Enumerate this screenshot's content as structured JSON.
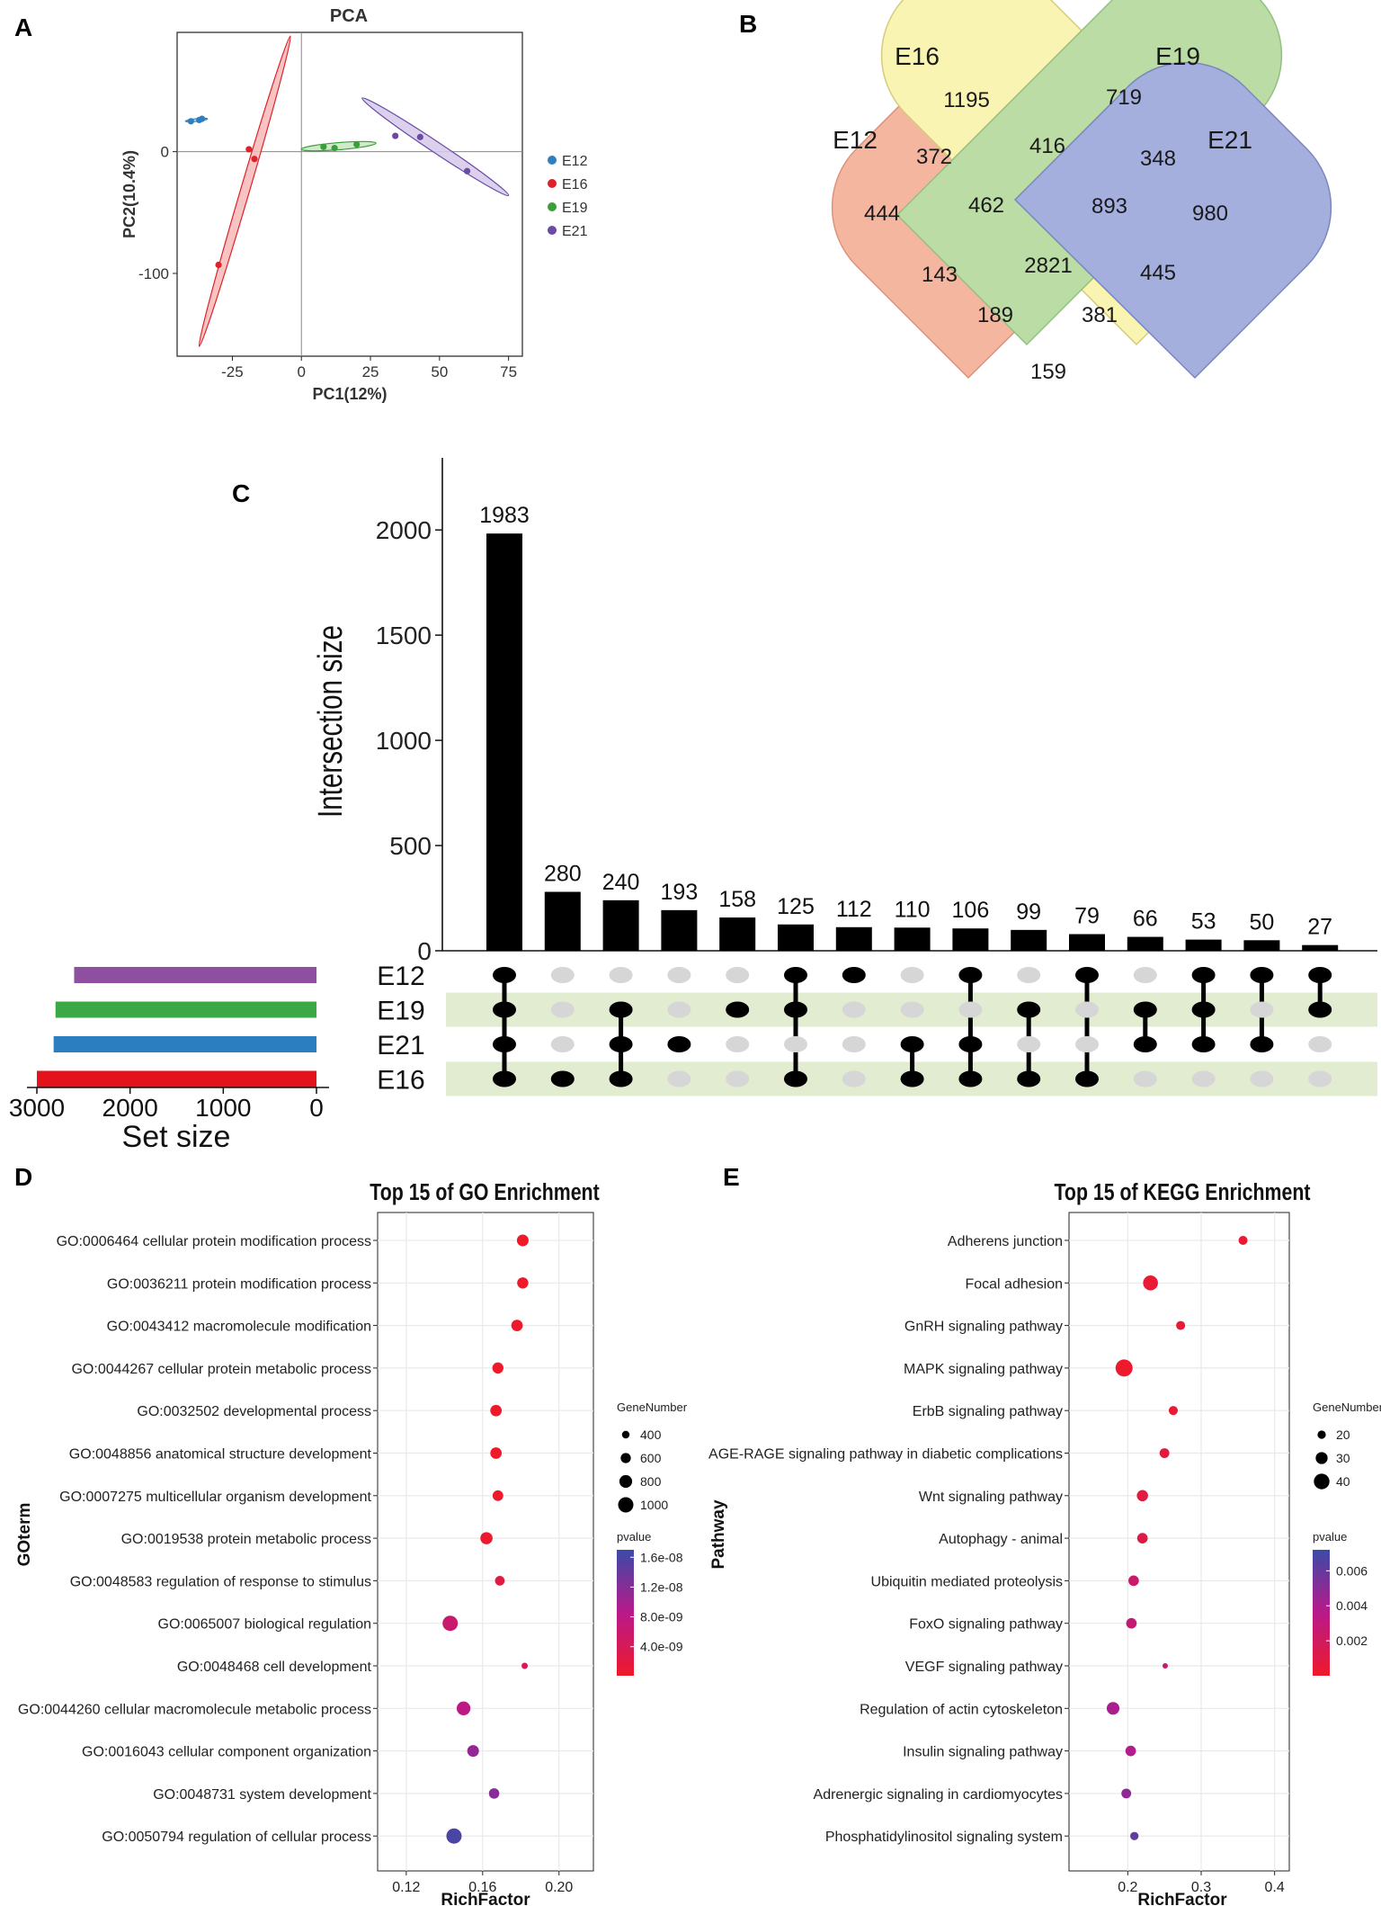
{
  "panel_labels": {
    "A": "A",
    "B": "B",
    "C": "C",
    "D": "D",
    "E": "E"
  },
  "chart_data": [
    {
      "panel": "A",
      "type": "scatter",
      "title": "PCA",
      "xlabel": "PC1(12%)",
      "ylabel": "PC2(10.4%)",
      "xlim": [
        -45,
        80
      ],
      "ylim": [
        -168,
        98
      ],
      "xticks": [
        -25,
        0,
        25,
        50,
        75
      ],
      "yticks": [
        0,
        -100
      ],
      "series": [
        {
          "name": "E12",
          "color": "#2f7ec1",
          "points": [
            [
              -40,
              25
            ],
            [
              -37,
              26
            ],
            [
              -36,
              27
            ]
          ],
          "ellipse": {
            "points": [
              [
                -42,
                25
              ],
              [
                -34,
                27
              ]
            ],
            "halfwidth": 1.5,
            "fill": "#bcd7ef"
          }
        },
        {
          "name": "E16",
          "color": "#e0212a",
          "points": [
            [
              -19,
              2
            ],
            [
              -17,
              -6
            ],
            [
              -30,
              -93
            ]
          ],
          "ellipse": {
            "points": [
              [
                -37,
                -160
              ],
              [
                -4,
                95
              ]
            ],
            "halfwidth": 5,
            "fill": "#f6b8b8"
          }
        },
        {
          "name": "E19",
          "color": "#3a9e3a",
          "points": [
            [
              8,
              4
            ],
            [
              12,
              3
            ],
            [
              20,
              6
            ]
          ],
          "ellipse": {
            "points": [
              [
                0,
                2
              ],
              [
                27,
                7
              ]
            ],
            "halfwidth": 4,
            "fill": "#c5e6c0"
          }
        },
        {
          "name": "E21",
          "color": "#6a4aa5",
          "points": [
            [
              34,
              13
            ],
            [
              43,
              12
            ],
            [
              60,
              -16
            ]
          ],
          "ellipse": {
            "points": [
              [
                22,
                44
              ],
              [
                75,
                -36
              ]
            ],
            "halfwidth": 6,
            "fill": "#d5c9ea"
          }
        }
      ]
    },
    {
      "panel": "B",
      "type": "venn",
      "sets": [
        {
          "name": "E12",
          "color": "#f08a67"
        },
        {
          "name": "E16",
          "color": "#f6ee82"
        },
        {
          "name": "E19",
          "color": "#92c86f"
        },
        {
          "name": "E21",
          "color": "#6d7fcb"
        }
      ],
      "regions": [
        {
          "sets": "E16",
          "value": "1195"
        },
        {
          "sets": "E19",
          "value": "719"
        },
        {
          "sets": "E16&E19",
          "value": "416"
        },
        {
          "sets": "E12&E16",
          "value": "372"
        },
        {
          "sets": "E19&E21",
          "value": "348"
        },
        {
          "sets": "E12",
          "value": "444"
        },
        {
          "sets": "E12&E16&E19",
          "value": "462"
        },
        {
          "sets": "E16&E19&E21",
          "value": "893"
        },
        {
          "sets": "E21",
          "value": "980"
        },
        {
          "sets": "E12&E16&E19&E21",
          "value": "2821"
        },
        {
          "sets": "E12&E19",
          "value": "143"
        },
        {
          "sets": "E12&E19&E21",
          "value": "445"
        },
        {
          "sets": "E12&E16&E21",
          "value": "189"
        },
        {
          "sets": "E16&E21",
          "value": "381"
        },
        {
          "sets": "E12&E21",
          "value": "159"
        }
      ]
    },
    {
      "panel": "C",
      "type": "upset",
      "ylabel": "Intersection size",
      "ylim": [
        0,
        2300
      ],
      "yticks": [
        0,
        500,
        1000,
        1500,
        2000
      ],
      "set_size_label": "Set size",
      "set_size_ticks": [
        3000,
        2000,
        1000,
        0
      ],
      "sets": [
        {
          "name": "E12",
          "size": 2600,
          "color": "#8e4fa0"
        },
        {
          "name": "E19",
          "size": 2800,
          "color": "#3aa845"
        },
        {
          "name": "E21",
          "size": 2820,
          "color": "#2b7fc1"
        },
        {
          "name": "E16",
          "size": 3000,
          "color": "#e3121b"
        }
      ],
      "intersections": [
        {
          "value": 1983,
          "members": [
            0,
            1,
            2,
            3
          ]
        },
        {
          "value": 280,
          "members": [
            3
          ]
        },
        {
          "value": 240,
          "members": [
            1,
            2,
            3
          ]
        },
        {
          "value": 193,
          "members": [
            2
          ]
        },
        {
          "value": 158,
          "members": [
            1
          ]
        },
        {
          "value": 125,
          "members": [
            0,
            1,
            3
          ]
        },
        {
          "value": 112,
          "members": [
            0
          ]
        },
        {
          "value": 110,
          "members": [
            2,
            3
          ]
        },
        {
          "value": 106,
          "members": [
            0,
            2,
            3
          ]
        },
        {
          "value": 99,
          "members": [
            1,
            3
          ]
        },
        {
          "value": 79,
          "members": [
            0,
            3
          ]
        },
        {
          "value": 66,
          "members": [
            1,
            2
          ]
        },
        {
          "value": 53,
          "members": [
            0,
            1,
            2
          ]
        },
        {
          "value": 50,
          "members": [
            0,
            2
          ]
        },
        {
          "value": 27,
          "members": [
            0,
            1
          ]
        }
      ]
    },
    {
      "panel": "D",
      "type": "scatter",
      "title": "Top 15 of GO Enrichment",
      "xlabel": "RichFactor",
      "ylabel": "GOterm",
      "xlim": [
        0.105,
        0.218
      ],
      "xticks": [
        0.12,
        0.16,
        0.2
      ],
      "xtick_labels": [
        "0.12",
        "0.16",
        "0.20"
      ],
      "categories": [
        "GO:0006464 cellular protein modification process",
        "GO:0036211 protein modification process",
        "GO:0043412 macromolecule modification",
        "GO:0044267 cellular protein metabolic process",
        "GO:0032502 developmental process",
        "GO:0048856 anatomical structure development",
        "GO:0007275 multicellular organism development",
        "GO:0019538 protein metabolic process",
        "GO:0048583 regulation of response to stimulus",
        "GO:0065007 biological regulation",
        "GO:0048468 cell development",
        "GO:0044260 cellular macromolecule metabolic process",
        "GO:0016043 cellular component organization",
        "GO:0048731 system development",
        "GO:0050794 regulation of cellular process"
      ],
      "x": [
        0.181,
        0.181,
        0.178,
        0.168,
        0.167,
        0.167,
        0.168,
        0.162,
        0.169,
        0.143,
        0.182,
        0.15,
        0.155,
        0.166,
        0.145
      ],
      "gene_number": [
        720,
        680,
        700,
        680,
        700,
        700,
        640,
        760,
        560,
        1000,
        300,
        880,
        720,
        620,
        1000
      ],
      "pvalue": [
        1e-10,
        1e-10,
        1e-10,
        1.5e-10,
        1e-10,
        2e-10,
        3e-10,
        5e-10,
        2e-09,
        6e-09,
        4e-09,
        8e-09,
        1.1e-08,
        1.2e-08,
        1.6e-08
      ],
      "size_legend": {
        "title": "GeneNumber",
        "values": [
          400,
          600,
          800,
          1000
        ]
      },
      "color_legend": {
        "title": "pvalue",
        "range": [
          1e-10,
          1.7e-08
        ],
        "tick_values": [
          1.6e-08,
          1.2e-08,
          8e-09,
          4e-09
        ],
        "tick_labels": [
          "1.6e-08",
          "1.2e-08",
          "8.0e-09",
          "4.0e-09"
        ]
      }
    },
    {
      "panel": "E",
      "type": "scatter",
      "title": "Top 15 of KEGG Enrichment",
      "xlabel": "RichFactor",
      "ylabel": "Pathway",
      "xlim": [
        0.12,
        0.42
      ],
      "xticks": [
        0.2,
        0.3,
        0.4
      ],
      "xtick_labels": [
        "0.2",
        "0.3",
        "0.4"
      ],
      "categories": [
        "Adherens junction",
        "Focal adhesion",
        "GnRH signaling pathway",
        "MAPK signaling pathway",
        "ErbB signaling pathway",
        "AGE-RAGE signaling pathway in diabetic complications",
        "Wnt signaling pathway",
        "Autophagy - animal",
        "Ubiquitin mediated proteolysis",
        "FoxO signaling pathway",
        "VEGF signaling pathway",
        "Regulation of actin cytoskeleton",
        "Insulin signaling pathway",
        "Adrenergic signaling in cardiomyocytes",
        "Phosphatidylinositol signaling system"
      ],
      "x": [
        0.357,
        0.231,
        0.272,
        0.195,
        0.262,
        0.25,
        0.22,
        0.22,
        0.208,
        0.205,
        0.251,
        0.18,
        0.204,
        0.198,
        0.209
      ],
      "gene_number": [
        22,
        38,
        22,
        44,
        22,
        24,
        28,
        26,
        26,
        26,
        12,
        32,
        26,
        24,
        20
      ],
      "pvalue": [
        0.0004,
        0.0004,
        0.0003,
        0.0001,
        0.0005,
        0.0008,
        0.0009,
        0.0011,
        0.0024,
        0.0028,
        0.0025,
        0.004,
        0.0038,
        0.0048,
        0.0062
      ],
      "size_legend": {
        "title": "GeneNumber",
        "values": [
          20,
          30,
          40
        ]
      },
      "color_legend": {
        "title": "pvalue",
        "range": [
          0.0,
          0.0072
        ],
        "tick_values": [
          0.006,
          0.004,
          0.002
        ],
        "tick_labels": [
          "0.006",
          "0.004",
          "0.002"
        ]
      }
    }
  ]
}
